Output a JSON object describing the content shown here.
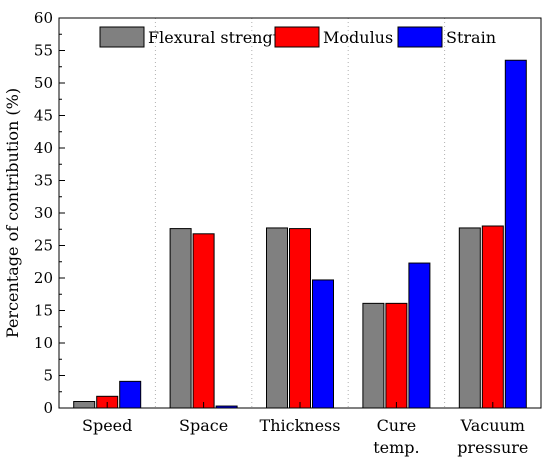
{
  "chart_data": {
    "type": "bar",
    "categories": [
      [
        "Speed"
      ],
      [
        "Space"
      ],
      [
        "Thickness"
      ],
      [
        "Cure",
        "temp."
      ],
      [
        "Vacuum",
        "pressure"
      ]
    ],
    "series": [
      {
        "name": "Flexural strength",
        "color": "#808080",
        "values": [
          1.0,
          27.6,
          27.7,
          16.1,
          27.7
        ]
      },
      {
        "name": "Modulus",
        "color": "#ff0000",
        "values": [
          1.8,
          26.8,
          27.6,
          16.1,
          28.0
        ]
      },
      {
        "name": "Strain",
        "color": "#0000ff",
        "values": [
          4.1,
          0.3,
          19.7,
          22.3,
          53.5
        ]
      }
    ],
    "title": "",
    "xlabel": "",
    "ylabel": "Percentage of contribution (%)",
    "ylim": [
      0,
      60
    ],
    "yticks": [
      "0",
      "5",
      "10",
      "15",
      "20",
      "25",
      "30",
      "35",
      "40",
      "45",
      "50",
      "55",
      "60"
    ],
    "grid": "vertical-dotted",
    "legend": {
      "placement": "top-center"
    }
  }
}
